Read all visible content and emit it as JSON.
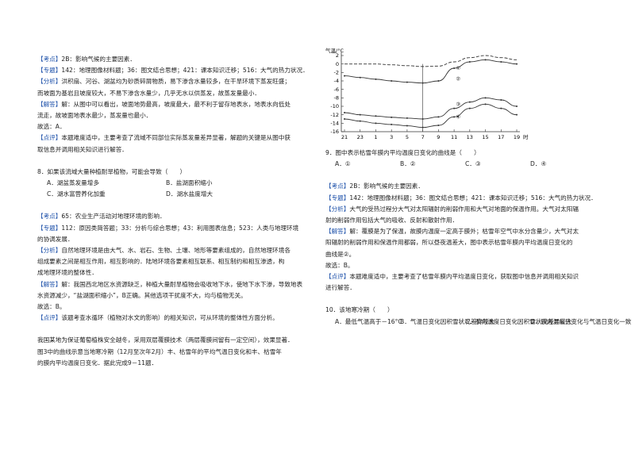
{
  "left": [
    {
      "tag": "【考点】",
      "lines": [
        "2B：影响气候的主要因素．"
      ]
    },
    {
      "tag": "【专题】",
      "lines": [
        "142：地理图像材料题；36：图文结合思想；421：课本知识迁移；516：大气的热力状况．"
      ]
    },
    {
      "tag": "【分析】",
      "lines": [
        "洪积扇、河谷、湖盆均为砂质碎屑物质，易下渗含水量较多，在干旱环境下蒸发旺盛；",
        "而坡面为基岩且坡度较大，不易下渗含水量少，几乎无水以供蒸发，故蒸发量最小．"
      ]
    },
    {
      "tag": "【解答】",
      "lines": [
        "解：从图中可以看出，坡面地势最高，坡度最大，最不利于留存地表水，地表水向低处",
        "流走，故坡面地表水最少，蒸发量也最小．"
      ]
    },
    {
      "tag": "",
      "lines": [
        "故选：A．"
      ]
    },
    {
      "tag": "【点评】",
      "lines": [
        "本题难度适中，主要考查了流域不同部位实际蒸发量差异显著，解题的关键是从图中获",
        "取信息并调用相关知识进行解答．"
      ]
    },
    {
      "stem": "8．如果该流域大量种植耐旱植物，可能会导致（　　）",
      "options": [
        "A．湖盆蒸发量增多",
        "B．盐湖面积缩小",
        "C．湖水富营养化加重",
        "D．湖水盐度增大"
      ]
    },
    {
      "tag": "【考点】",
      "lines": [
        "65：农业生产活动对地理环境的影响．"
      ]
    },
    {
      "tag": "【专题】",
      "lines": [
        "112：原因类简答题；33：分析与综合思想；43：利用图表信息；523：人类与地理环境",
        "的协调发展．"
      ]
    },
    {
      "tag": "【分析】",
      "lines": [
        "自然地理环境是由大气、水、岩石、生物、土壤、地形等要素组成的，自然地理环境各",
        "组成要素之间是相互作用，相互影响的．陆地环境各要素相互联系、相互制约和相互渗透，构",
        "成地理环境的整体性．"
      ]
    },
    {
      "tag": "【解答】",
      "lines": [
        "解：我国西北地区水资源缺乏，种植大量耐旱植物会吸收地下水，使地下水下渗，导致地表",
        "水资源减少，“盐湖面积缩小”，B正确。其他选项干扰度不大，均与植物无关。"
      ]
    },
    {
      "tag": "",
      "lines": [
        "故选：B。"
      ]
    },
    {
      "tag": "【点评】",
      "lines": [
        "该题考查水循环（植物对水文的影响）的相关知识，可从环境的整体性方面分析。"
      ]
    },
    {
      "tag": "",
      "lines": [
        "我国某地为保证葡萄植株安全越冬，采用双层覆膜技术（两层覆膜间留有一定空间），效果显著．",
        "图3中的曲线示意当地寒冷期（12月至次年2月）丰、枯雪年的平均气温日变化和丰、枯雪年",
        "的膜内平均温度日变化．据此完成9－11题．"
      ]
    }
  ],
  "figure": {
    "y_label": "气温/°C",
    "x_unit": "时",
    "categories": [
      "21",
      "23",
      "1",
      "3",
      "5",
      "7",
      "9",
      "11",
      "13",
      "15",
      "17",
      "19"
    ],
    "ylim": [
      -16,
      2
    ],
    "yticks": [
      2,
      0,
      -2,
      -4,
      -6,
      -8,
      -10,
      -12,
      -14,
      -16
    ],
    "series": [
      {
        "name": "①",
        "values": [
          0,
          0,
          0,
          -0.2,
          -0.4,
          -0.6,
          -0.5,
          0.5,
          1.5,
          2,
          1.5,
          1
        ]
      },
      {
        "name": "②",
        "values": [
          -2.8,
          -3.2,
          -3.6,
          -4,
          -4.3,
          -4.5,
          -4,
          -1,
          0.5,
          1,
          0.5,
          0
        ]
      },
      {
        "name": "③",
        "values": [
          -11.5,
          -12,
          -12.3,
          -12.6,
          -12.8,
          -13,
          -12.5,
          -10.5,
          -9,
          -8,
          -8.5,
          -10
        ]
      },
      {
        "name": "④",
        "values": [
          -13,
          -13.5,
          -14,
          -14.3,
          -14.6,
          -15,
          -14.5,
          -12.5,
          -10.5,
          -9.5,
          -10.5,
          -12
        ]
      }
    ]
  },
  "right": [
    {
      "stem": "9．图中表示枯雪年膜内平均温度日变化的曲线是（　　）",
      "options": [
        "A．①",
        "B．②",
        "C．③",
        "D．④"
      ]
    },
    {
      "tag": "【考点】",
      "lines": [
        "2B：影响气候的主要因素．"
      ]
    },
    {
      "tag": "【专题】",
      "lines": [
        "142：地理图像材料题；36：图文结合思想；421：课本知识迁移；516：大气的热力状况．"
      ]
    },
    {
      "tag": "【分析】",
      "lines": [
        "大气的受热过程分大气对太阳辐射的削弱作用和大气对地面的保温作用。大气对太阳辐",
        "射的削弱作用包括大气的吸收、反射和散射作用．"
      ]
    },
    {
      "tag": "【解答】",
      "lines": [
        "解：覆膜是为了保温，故膜内温度一定高于膜外；枯雪年空气中水分含量少，大气对太",
        "阳辐射的削弱作用和保温作用都弱，所以昼夜温差大，图中表示枯雪年膜内平均温度日变化的",
        "曲线是②。"
      ]
    },
    {
      "tag": "",
      "lines": [
        "故选：B。"
      ]
    },
    {
      "tag": "【点评】",
      "lines": [
        "本题难度适中，主要考查了枯雪年膜内平均温度日变化，获取图中信息并调用相关知识",
        "进行解答．"
      ]
    },
    {
      "stem": "10．该地寒冷期（　　）",
      "options": [
        "A．最低气温高于－16°C",
        "B．气温日变化因积雪状况差异较大",
        "C．膜内温度日变化因积雪状况差异较大",
        "D．膜内温度日变化与气温日变化一致"
      ]
    }
  ]
}
